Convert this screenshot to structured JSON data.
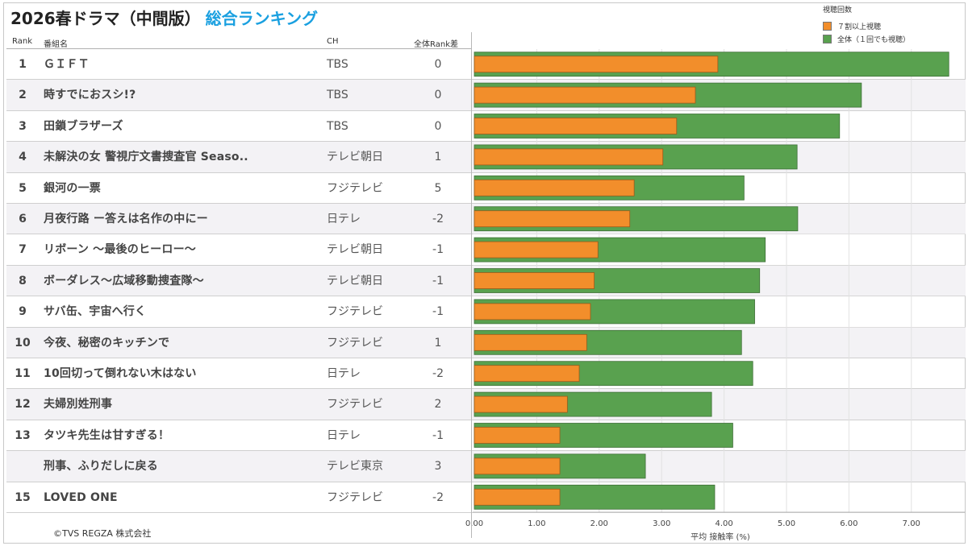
{
  "title": {
    "main": "2026春ドラマ（中間版）",
    "sub": "総合ランキング"
  },
  "legend": {
    "title": "視聴回数",
    "items": [
      {
        "label": "７割以上視聴",
        "color": "#f28e2b"
      },
      {
        "label": "全体（１回でも視聴）",
        "color": "#59a14f"
      }
    ]
  },
  "headers": {
    "rank": "Rank",
    "name": "番組名",
    "ch": "CH",
    "diff": "全体Rank差"
  },
  "rows": [
    {
      "rank": "1",
      "name": "ＧＩＦＴ",
      "ch": "TBS",
      "diff": "0"
    },
    {
      "rank": "2",
      "name": "時すでにおスシ!?",
      "ch": "TBS",
      "diff": "0"
    },
    {
      "rank": "3",
      "name": "田鎖ブラザーズ",
      "ch": "TBS",
      "diff": "0"
    },
    {
      "rank": "4",
      "name": "未解決の女 警視庁文書捜査官 Seaso..",
      "ch": "テレビ朝日",
      "diff": "1"
    },
    {
      "rank": "5",
      "name": "銀河の一票",
      "ch": "フジテレビ",
      "diff": "5"
    },
    {
      "rank": "6",
      "name": "月夜行路 ー答えは名作の中にー",
      "ch": "日テレ",
      "diff": "-2"
    },
    {
      "rank": "7",
      "name": "リボーン ～最後のヒーロー～",
      "ch": "テレビ朝日",
      "diff": "-1"
    },
    {
      "rank": "8",
      "name": "ボーダレス～広域移動捜査隊～",
      "ch": "テレビ朝日",
      "diff": "-1"
    },
    {
      "rank": "9",
      "name": "サバ缶、宇宙へ行く",
      "ch": "フジテレビ",
      "diff": "-1"
    },
    {
      "rank": "10",
      "name": "今夜、秘密のキッチンで",
      "ch": "フジテレビ",
      "diff": "1"
    },
    {
      "rank": "11",
      "name": "10回切って倒れない木はない",
      "ch": "日テレ",
      "diff": "-2"
    },
    {
      "rank": "12",
      "name": "夫婦別姓刑事",
      "ch": "フジテレビ",
      "diff": "2"
    },
    {
      "rank": "13",
      "name": "タツキ先生は甘すぎる！",
      "ch": "日テレ",
      "diff": "-1"
    },
    {
      "rank": "",
      "name": "刑事、ふりだしに戻る",
      "ch": "テレビ東京",
      "diff": "3"
    },
    {
      "rank": "15",
      "name": "LOVED ONE",
      "ch": "フジテレビ",
      "diff": "-2"
    }
  ],
  "chart_data": {
    "type": "bar",
    "orientation": "horizontal",
    "xlabel": "平均 接触率 (%)",
    "xlim": [
      0,
      7.7
    ],
    "ticks": [
      "0.00",
      "1.00",
      "2.00",
      "3.00",
      "4.00",
      "5.00",
      "6.00",
      "7.00"
    ],
    "grid": true,
    "legend_position": "top-right",
    "series": [
      {
        "name": "全体（１回でも視聴）",
        "color": "#59a14f",
        "values": [
          7.6,
          6.2,
          5.85,
          5.17,
          4.32,
          5.18,
          4.66,
          4.57,
          4.49,
          4.28,
          4.46,
          3.8,
          4.14,
          2.74,
          3.85
        ]
      },
      {
        "name": "７割以上視聴",
        "color": "#f28e2b",
        "values": [
          3.9,
          3.54,
          3.24,
          3.02,
          2.56,
          2.49,
          1.98,
          1.92,
          1.86,
          1.8,
          1.68,
          1.49,
          1.37,
          1.37,
          1.37
        ]
      }
    ]
  },
  "copyright": "©TVS REGZA 株式会社"
}
